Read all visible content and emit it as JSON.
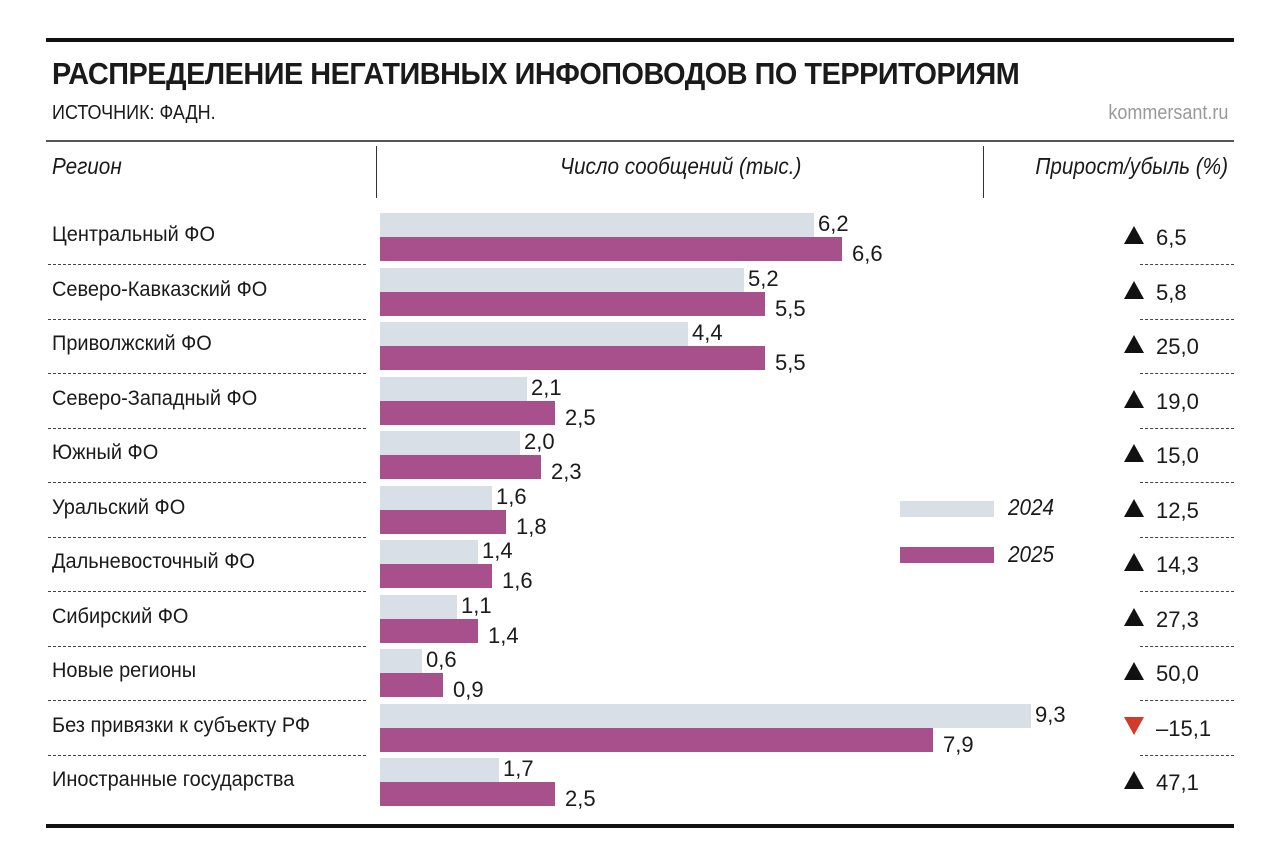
{
  "title": "РАСПРЕДЕЛЕНИЕ НЕГАТИВНЫХ ИНФОПОВОДОВ ПО ТЕРРИТОРИЯМ",
  "source": "ИСТОЧНИК: ФАДН.",
  "site": "kommersant.ru",
  "headers": {
    "region": "Регион",
    "count": "Число сообщений (тыс.)",
    "change": "Прирост/убыль (%)"
  },
  "colors": {
    "2024": "#d9dfe6",
    "2025": "#a8508c",
    "up": "#111111",
    "down": "#d13b2a"
  },
  "chart_data": {
    "type": "bar",
    "orientation": "horizontal",
    "categories": [
      "Центральный ФО",
      "Северо-Кавказский ФО",
      "Приволжский ФО",
      "Северо-Западный ФО",
      "Южный ФО",
      "Уральский ФО",
      "Дальневосточный ФО",
      "Сибирский ФО",
      "Новые регионы",
      "Без привязки к субъекту РФ",
      "Иностранные государства"
    ],
    "series": [
      {
        "name": "2024",
        "values": [
          6.2,
          5.2,
          4.4,
          2.1,
          2.0,
          1.6,
          1.4,
          1.1,
          0.6,
          9.3,
          1.7
        ],
        "labels": [
          "6,2",
          "5,2",
          "4,4",
          "2,1",
          "2,0",
          "1,6",
          "1,4",
          "1,1",
          "0,6",
          "9,3",
          "1,7"
        ]
      },
      {
        "name": "2025",
        "values": [
          6.6,
          5.5,
          5.5,
          2.5,
          2.3,
          1.8,
          1.6,
          1.4,
          0.9,
          7.9,
          2.5
        ],
        "labels": [
          "6,6",
          "5,5",
          "5,5",
          "2,5",
          "2,3",
          "1,8",
          "1,6",
          "1,4",
          "0,9",
          "7,9",
          "2,5"
        ]
      }
    ],
    "change": [
      6.5,
      5.8,
      25.0,
      19.0,
      15.0,
      12.5,
      14.3,
      27.3,
      50.0,
      -15.1,
      47.1
    ],
    "change_labels": [
      "6,5",
      "5,8",
      "25,0",
      "19,0",
      "15,0",
      "12,5",
      "14,3",
      "27,3",
      "50,0",
      "–15,1",
      "47,1"
    ],
    "legend": "right",
    "grid": false
  }
}
